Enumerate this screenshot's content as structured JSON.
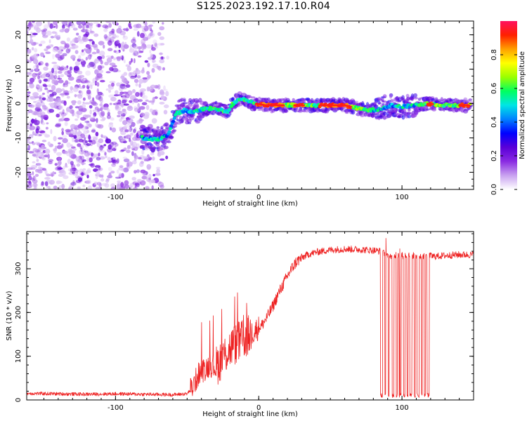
{
  "title": "S125.2023.192.17.10.R04",
  "colors": {
    "snr_line": "#ee2222",
    "colormap": [
      "#ffffff",
      "#c9a2f0",
      "#8a2be2",
      "#5a00d8",
      "#0000ff",
      "#0080ff",
      "#00e5e5",
      "#00ff60",
      "#9aff00",
      "#ffff00",
      "#ffa000",
      "#ff2000",
      "#ff1060"
    ]
  },
  "chart_data": [
    {
      "type": "heatmap",
      "title": "",
      "xlabel": "Height of straight line (km)",
      "ylabel": "Frequency (Hz)",
      "xlim": [
        -162,
        150
      ],
      "ylim": [
        -25,
        24
      ],
      "x_ticks": [
        -100,
        0,
        100
      ],
      "y_ticks": [
        20,
        10,
        0,
        -10,
        -20
      ],
      "colorbar": {
        "label": "Normalized spectral amplitude",
        "range": [
          0,
          1
        ],
        "ticks": [
          "0.0",
          "0.2",
          "0.4",
          "0.6",
          "0.8"
        ]
      },
      "grid": false,
      "ridge": {
        "description_points": [
          [
            -82,
            -10
          ],
          [
            -70,
            -10.5
          ],
          [
            -63,
            -9
          ],
          [
            -58,
            -3
          ],
          [
            -52,
            -2
          ],
          [
            -45,
            -2.5
          ],
          [
            -38,
            -1.5
          ],
          [
            -30,
            -1.5
          ],
          [
            -22,
            -2.5
          ],
          [
            -18,
            0
          ],
          [
            -13,
            1.5
          ],
          [
            -8,
            1
          ],
          [
            -3,
            0
          ],
          [
            5,
            -0.5
          ],
          [
            20,
            -0.5
          ],
          [
            40,
            -0.5
          ],
          [
            60,
            -0.5
          ],
          [
            70,
            -1.5
          ],
          [
            78,
            -2
          ],
          [
            85,
            -1.5
          ],
          [
            92,
            -0.5
          ],
          [
            100,
            -1
          ],
          [
            108,
            -0.5
          ],
          [
            118,
            0
          ],
          [
            130,
            -0.5
          ],
          [
            145,
            -0.5
          ]
        ],
        "peak_amplitude_segments": [
          [
            -2,
            18
          ],
          [
            25,
            32
          ],
          [
            42,
            65
          ],
          [
            118,
            122
          ],
          [
            140,
            147
          ]
        ]
      }
    },
    {
      "type": "line",
      "title": "",
      "xlabel": "Height of straight line (km)",
      "ylabel": "SNR (10 * v/v)",
      "xlim": [
        -162,
        150
      ],
      "ylim": [
        0,
        385
      ],
      "x_ticks": [
        -100,
        0,
        100
      ],
      "y_ticks": [
        0,
        100,
        200,
        300
      ],
      "grid": false,
      "series": [
        {
          "name": "",
          "x": [
            -162,
            -140,
            -120,
            -100,
            -80,
            -60,
            -50,
            -46,
            -42,
            -38,
            -34,
            -30,
            -26,
            -22,
            -18,
            -14,
            -10,
            -6,
            -2,
            2,
            6,
            10,
            14,
            18,
            22,
            26,
            30,
            34,
            40,
            50,
            60,
            70,
            80,
            85,
            90,
            95,
            100,
            105,
            110,
            115,
            118,
            122,
            130,
            140,
            150
          ],
          "values": [
            15,
            14,
            13,
            14,
            13,
            12,
            14,
            30,
            60,
            70,
            80,
            75,
            95,
            110,
            125,
            130,
            140,
            150,
            160,
            170,
            190,
            215,
            245,
            270,
            295,
            315,
            325,
            332,
            338,
            343,
            345,
            344,
            342,
            340,
            330,
            330,
            330,
            330,
            330,
            330,
            330,
            328,
            330,
            332,
            332
          ],
          "dropouts": {
            "range": [
              85,
              120
            ],
            "low_value": 5,
            "high_value": 345
          }
        }
      ]
    }
  ]
}
